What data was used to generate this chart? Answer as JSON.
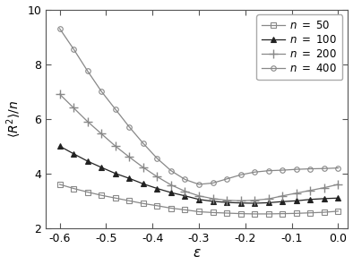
{
  "title": "",
  "xlabel": "ε",
  "ylabel": "<R^2>/n",
  "xlim": [
    -0.63,
    0.02
  ],
  "ylim": [
    2,
    10
  ],
  "yticks": [
    2,
    4,
    6,
    8,
    10
  ],
  "xticks": [
    -0.6,
    -0.5,
    -0.4,
    -0.3,
    -0.2,
    -0.1,
    0.0
  ],
  "line_color": "#888888",
  "series": [
    {
      "label": "n = 50",
      "marker": "s",
      "filled": false,
      "x": [
        -0.6,
        -0.57,
        -0.54,
        -0.51,
        -0.48,
        -0.45,
        -0.42,
        -0.39,
        -0.36,
        -0.33,
        -0.3,
        -0.27,
        -0.24,
        -0.21,
        -0.18,
        -0.15,
        -0.12,
        -0.09,
        -0.06,
        -0.03,
        0.0
      ],
      "y": [
        3.6,
        3.45,
        3.32,
        3.2,
        3.1,
        3.0,
        2.9,
        2.82,
        2.73,
        2.67,
        2.6,
        2.57,
        2.55,
        2.53,
        2.52,
        2.52,
        2.53,
        2.54,
        2.56,
        2.58,
        2.62
      ]
    },
    {
      "label": "n = 100",
      "marker": "^",
      "filled": true,
      "x": [
        -0.6,
        -0.57,
        -0.54,
        -0.51,
        -0.48,
        -0.45,
        -0.42,
        -0.39,
        -0.36,
        -0.33,
        -0.3,
        -0.27,
        -0.24,
        -0.21,
        -0.18,
        -0.15,
        -0.12,
        -0.09,
        -0.06,
        -0.03,
        0.0
      ],
      "y": [
        5.0,
        4.72,
        4.45,
        4.22,
        4.0,
        3.82,
        3.62,
        3.45,
        3.3,
        3.18,
        3.05,
        2.98,
        2.94,
        2.92,
        2.91,
        2.93,
        2.97,
        3.0,
        3.05,
        3.08,
        3.1
      ]
    },
    {
      "label": "n = 200",
      "marker": "+",
      "filled": false,
      "x": [
        -0.6,
        -0.57,
        -0.54,
        -0.51,
        -0.48,
        -0.45,
        -0.42,
        -0.39,
        -0.36,
        -0.33,
        -0.3,
        -0.27,
        -0.24,
        -0.21,
        -0.18,
        -0.15,
        -0.12,
        -0.09,
        -0.06,
        -0.03,
        0.0
      ],
      "y": [
        6.9,
        6.4,
        5.9,
        5.45,
        5.0,
        4.6,
        4.22,
        3.88,
        3.58,
        3.35,
        3.18,
        3.08,
        3.02,
        3.0,
        3.02,
        3.07,
        3.18,
        3.28,
        3.38,
        3.48,
        3.6
      ]
    },
    {
      "label": "n = 400",
      "marker": "o",
      "filled": false,
      "x": [
        -0.6,
        -0.57,
        -0.54,
        -0.51,
        -0.48,
        -0.45,
        -0.42,
        -0.39,
        -0.36,
        -0.33,
        -0.3,
        -0.27,
        -0.24,
        -0.21,
        -0.18,
        -0.15,
        -0.12,
        -0.09,
        -0.06,
        -0.03,
        0.0
      ],
      "y": [
        9.3,
        8.55,
        7.75,
        7.0,
        6.35,
        5.7,
        5.1,
        4.55,
        4.1,
        3.78,
        3.6,
        3.65,
        3.8,
        3.95,
        4.05,
        4.1,
        4.12,
        4.15,
        4.17,
        4.18,
        4.2
      ]
    }
  ],
  "legend_loc": "upper right",
  "background_color": "#ffffff"
}
